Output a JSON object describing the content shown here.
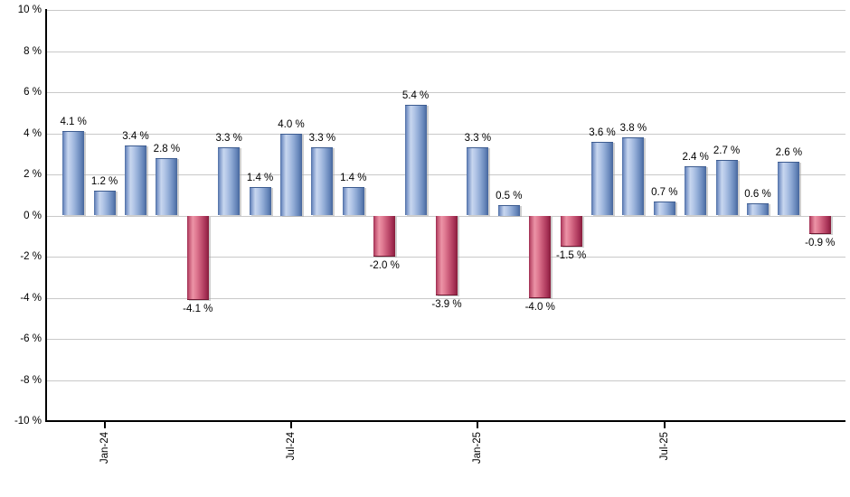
{
  "chart_data": {
    "type": "bar",
    "title": "",
    "unit": "%",
    "values": [
      4.1,
      1.2,
      3.4,
      2.8,
      -4.1,
      3.3,
      1.4,
      4.0,
      3.3,
      1.4,
      -2.0,
      5.4,
      -3.9,
      3.3,
      0.5,
      -4.0,
      -1.5,
      3.6,
      3.8,
      0.7,
      2.4,
      2.7,
      0.6,
      2.6,
      -0.9
    ],
    "value_labels": [
      "4.1 %",
      "1.2 %",
      "3.4 %",
      "2.8 %",
      "-4.1 %",
      "3.3 %",
      "1.4 %",
      "4.0 %",
      "3.3 %",
      "1.4 %",
      "-2.0 %",
      "5.4 %",
      "-3.9 %",
      "3.3 %",
      "0.5 %",
      "-4.0 %",
      "-1.5 %",
      "3.6 %",
      "3.8 %",
      "0.7 %",
      "2.4 %",
      "2.7 %",
      "0.6 %",
      "2.6 %",
      "-0.9 %"
    ],
    "y_axis": {
      "min": -10,
      "max": 10,
      "step": 2,
      "tick_labels": [
        "10 %",
        "8 %",
        "6 %",
        "4 %",
        "2 %",
        "0 %",
        "-2 %",
        "-4 %",
        "-6 %",
        "-8 %",
        "-10 %"
      ]
    },
    "x_axis": {
      "tick_labels": [
        "Jan-24",
        "Jul-24",
        "Jan-25",
        "Jul-25"
      ],
      "tick_bar_indices": [
        1,
        7,
        13,
        19
      ]
    },
    "layout_hints": {
      "grid": "horizontal",
      "legend": "none",
      "bar_label_position": "outside-end",
      "x_label_rotation_deg": 90
    },
    "colors": {
      "positive_bar": "#93add7",
      "positive_bar_highlight": "#c7d6ef",
      "positive_bar_edge": "#46669c",
      "negative_bar": "#ca5a78",
      "negative_bar_highlight": "#ec93a6",
      "negative_bar_edge": "#871d3b",
      "gridline": "#c9c9c9",
      "axis": "#000000",
      "label_text": "#000000",
      "background": "#ffffff"
    }
  }
}
